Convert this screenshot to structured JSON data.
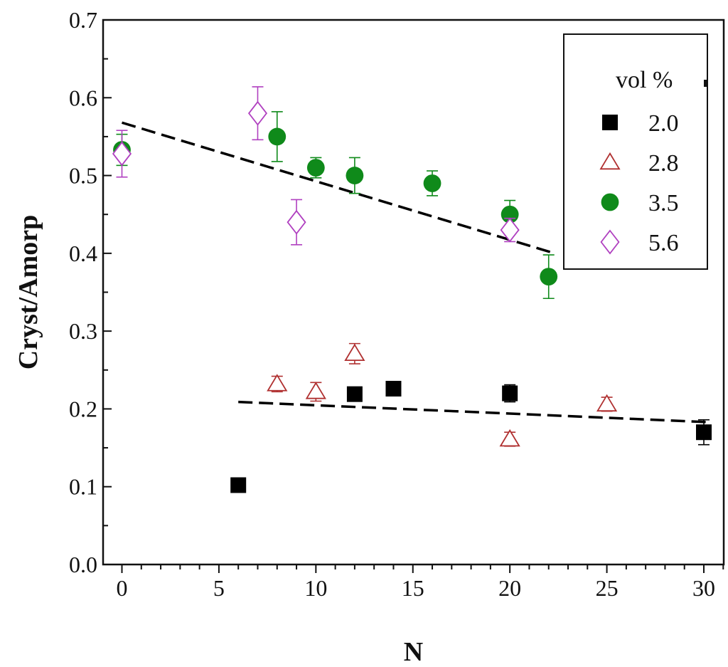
{
  "chart_data": {
    "type": "scatter",
    "title": "",
    "xlabel": "N",
    "ylabel": "Cryst/Amorp",
    "xlim": [
      -1,
      31
    ],
    "ylim": [
      0,
      0.7
    ],
    "xticks": [
      0,
      5,
      10,
      15,
      20,
      25,
      30
    ],
    "xtick_labels": [
      "0",
      "5",
      "10",
      "15",
      "20",
      "25",
      "30"
    ],
    "yticks": [
      0.0,
      0.1,
      0.2,
      0.3,
      0.4,
      0.5,
      0.6,
      0.7
    ],
    "ytick_labels": [
      "0.0",
      "0.1",
      "0.2",
      "0.3",
      "0.4",
      "0.5",
      "0.6",
      "0.7"
    ],
    "grid": false,
    "legend": {
      "title": "vol %",
      "position": "top-right"
    },
    "series": [
      {
        "name": "2.0",
        "marker": "square-filled",
        "color": "#000000",
        "points": [
          {
            "x": 6,
            "y": 0.102,
            "err": 0.005
          },
          {
            "x": 12,
            "y": 0.219,
            "err": 0.008
          },
          {
            "x": 14,
            "y": 0.226,
            "err": 0.008
          },
          {
            "x": 20,
            "y": 0.22,
            "err": 0.011
          },
          {
            "x": 30,
            "y": 0.17,
            "err": 0.016
          }
        ]
      },
      {
        "name": "2.8",
        "marker": "triangle-open",
        "color": "#b03030",
        "points": [
          {
            "x": 8,
            "y": 0.232,
            "err": 0.01
          },
          {
            "x": 10,
            "y": 0.222,
            "err": 0.012
          },
          {
            "x": 12,
            "y": 0.271,
            "err": 0.013
          },
          {
            "x": 20,
            "y": 0.161,
            "err": 0.009
          },
          {
            "x": 25,
            "y": 0.206,
            "err": 0.009
          }
        ]
      },
      {
        "name": "3.5",
        "marker": "circle-filled",
        "color": "#0f8a1a",
        "points": [
          {
            "x": 0,
            "y": 0.533,
            "err": 0.02
          },
          {
            "x": 8,
            "y": 0.55,
            "err": 0.032
          },
          {
            "x": 10,
            "y": 0.51,
            "err": 0.013
          },
          {
            "x": 12,
            "y": 0.5,
            "err": 0.023
          },
          {
            "x": 16,
            "y": 0.49,
            "err": 0.016
          },
          {
            "x": 20,
            "y": 0.45,
            "err": 0.018
          },
          {
            "x": 22,
            "y": 0.37,
            "err": 0.028
          }
        ]
      },
      {
        "name": "5.6",
        "marker": "diamond-open",
        "color": "#b040c0",
        "points": [
          {
            "x": 0,
            "y": 0.528,
            "err": 0.03
          },
          {
            "x": 7,
            "y": 0.58,
            "err": 0.034
          },
          {
            "x": 9,
            "y": 0.44,
            "err": 0.029
          },
          {
            "x": 20,
            "y": 0.43,
            "err": 0.015
          }
        ]
      }
    ],
    "trend_lines": [
      {
        "name": "upper-trend",
        "style": "dashed",
        "color": "#000000",
        "x": [
          0,
          22.3
        ],
        "y": [
          0.568,
          0.4
        ]
      },
      {
        "name": "lower-trend",
        "style": "dashed",
        "color": "#000000",
        "x": [
          6,
          30.2
        ],
        "y": [
          0.209,
          0.183
        ]
      }
    ]
  }
}
